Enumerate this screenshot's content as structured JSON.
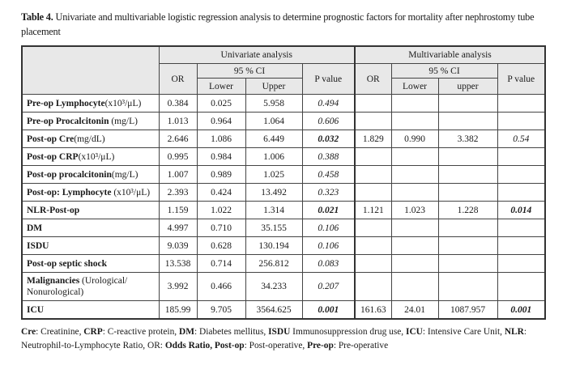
{
  "caption": {
    "label": "Table 4.",
    "text": " Univariate and multivariable logistic regression analysis to determine prognostic factors for mortality after nephrostomy tube placement"
  },
  "header": {
    "univariate": "Univariate analysis",
    "multivariable": "Multivariable analysis",
    "or": "OR",
    "ci": "95 % CI",
    "lower": "Lower",
    "upper_uni": "Upper",
    "upper_multi": "upper",
    "p": "P value"
  },
  "rows": [
    {
      "bold": "Pre-op Lymphocyte",
      "rest": "(x10³/μL)",
      "u": [
        "0.384",
        "0.025",
        "5.958",
        "0.494"
      ],
      "u_sig": false,
      "m": [
        "",
        "",
        "",
        ""
      ],
      "m_sig": false
    },
    {
      "bold": "Pre-op Procalcitonin",
      "rest": " (mg/L)",
      "u": [
        "1.013",
        "0.964",
        "1.064",
        "0.606"
      ],
      "u_sig": false,
      "m": [
        "",
        "",
        "",
        ""
      ],
      "m_sig": false
    },
    {
      "bold": "Post-op Cre",
      "rest": "(mg/dL)",
      "u": [
        "2.646",
        "1.086",
        "6.449",
        "0.032"
      ],
      "u_sig": true,
      "m": [
        "1.829",
        "0.990",
        "3.382",
        "0.54"
      ],
      "m_sig": false
    },
    {
      "bold": "Post-op CRP",
      "rest": "(x10³/μL)",
      "u": [
        "0.995",
        "0.984",
        "1.006",
        "0.388"
      ],
      "u_sig": false,
      "m": [
        "",
        "",
        "",
        ""
      ],
      "m_sig": false
    },
    {
      "bold": "Post-op procalcitonin",
      "rest": "(mg/L)",
      "u": [
        "1.007",
        "0.989",
        "1.025",
        "0.458"
      ],
      "u_sig": false,
      "m": [
        "",
        "",
        "",
        ""
      ],
      "m_sig": false
    },
    {
      "bold": "Post-op: Lymphocyte",
      "rest": " (x10³/μL)",
      "u": [
        "2.393",
        "0.424",
        "13.492",
        "0.323"
      ],
      "u_sig": false,
      "m": [
        "",
        "",
        "",
        ""
      ],
      "m_sig": false
    },
    {
      "bold": "NLR-Post-op",
      "rest": "",
      "u": [
        "1.159",
        "1.022",
        "1.314",
        "0.021"
      ],
      "u_sig": true,
      "m": [
        "1.121",
        "1.023",
        "1.228",
        "0.014"
      ],
      "m_sig": true
    },
    {
      "bold": "DM",
      "rest": "",
      "u": [
        "4.997",
        "0.710",
        "35.155",
        "0.106"
      ],
      "u_sig": false,
      "m": [
        "",
        "",
        "",
        ""
      ],
      "m_sig": false
    },
    {
      "bold": "ISDU",
      "rest": "",
      "u": [
        "9.039",
        "0.628",
        "130.194",
        "0.106"
      ],
      "u_sig": false,
      "m": [
        "",
        "",
        "",
        ""
      ],
      "m_sig": false
    },
    {
      "bold": "Post-op septic shock",
      "rest": "",
      "u": [
        "13.538",
        "0.714",
        "256.812",
        "0.083"
      ],
      "u_sig": false,
      "m": [
        "",
        "",
        "",
        ""
      ],
      "m_sig": false
    },
    {
      "bold": "Malignancies",
      "rest": " (Urological/ Nonurological)",
      "u": [
        "3.992",
        "0.466",
        "34.233",
        "0.207"
      ],
      "u_sig": false,
      "m": [
        "",
        "",
        "",
        ""
      ],
      "m_sig": false,
      "tall": true
    },
    {
      "bold": "ICU",
      "rest": "",
      "u": [
        "185.99",
        "9.705",
        "3564.625",
        "0.001"
      ],
      "u_sig": true,
      "m": [
        "161.63",
        "24.01",
        "1087.957",
        "0.001"
      ],
      "m_sig": true
    }
  ],
  "footnote": [
    {
      "b": "Cre",
      "t": ": Creatinine, "
    },
    {
      "b": "CRP",
      "t": ": C-reactive protein, "
    },
    {
      "b": "DM",
      "t": ": Diabetes mellitus, "
    },
    {
      "b": "ISDU",
      "t": " Immunosuppression drug use, "
    },
    {
      "b": "ICU",
      "t": ": Intensive Care Unit, "
    },
    {
      "b": "NLR",
      "t": ": Neutrophil-to-Lymphocyte Ratio, "
    },
    {
      "b": "",
      "t": "OR: "
    },
    {
      "b": "Odds Ratio, Post-op",
      "t": ": Post-operative, "
    },
    {
      "b": "Pre-op",
      "t": ": Pre-operative"
    }
  ]
}
